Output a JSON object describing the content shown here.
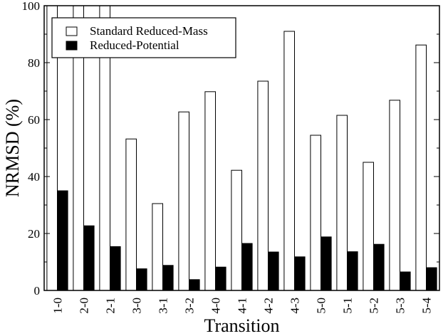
{
  "chart_data": {
    "type": "bar",
    "xlabel": "Transition",
    "ylabel": "NRMSD (%)",
    "ylim": [
      0,
      100
    ],
    "yticks": [
      "0",
      "20",
      "40",
      "60",
      "80",
      "100"
    ],
    "grid": false,
    "legend_position": "top-left",
    "categories": [
      "1-0",
      "2-0",
      "2-1",
      "3-0",
      "3-1",
      "3-2",
      "4-0",
      "4-1",
      "4-2",
      "4-3",
      "5-0",
      "5-1",
      "5-2",
      "5-3",
      "5-4"
    ],
    "series": [
      {
        "name": "Standard Reduced-Mass",
        "fill": "#ffffff",
        "values": [
          100,
          100,
          100,
          53.2,
          30.5,
          62.7,
          69.8,
          42.2,
          73.5,
          91.0,
          54.5,
          61.5,
          45.0,
          66.8,
          86.2
        ]
      },
      {
        "name": "Reduced-Potential",
        "fill": "#000000",
        "values": [
          35.0,
          22.7,
          15.4,
          7.6,
          8.8,
          3.8,
          8.2,
          16.5,
          13.5,
          11.8,
          18.8,
          13.6,
          16.2,
          6.5,
          8.0
        ]
      }
    ]
  }
}
